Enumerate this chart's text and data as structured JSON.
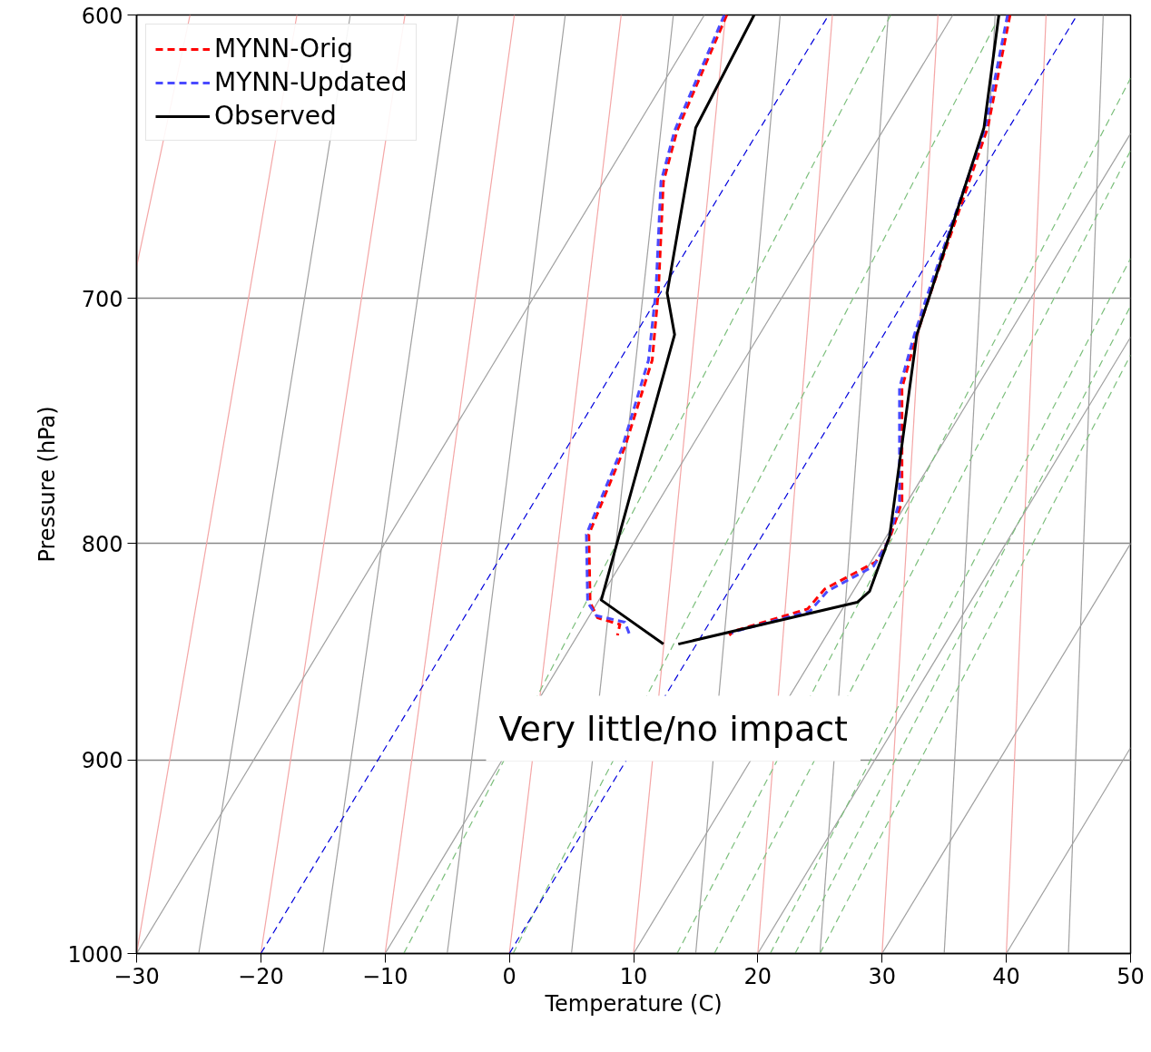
{
  "chart_data": {
    "type": "line",
    "xlabel": "Temperature (C)",
    "ylabel": "Pressure (hPa)",
    "log": "y",
    "xlim": [
      -30,
      50
    ],
    "ylim": [
      1000,
      600
    ],
    "xticks": [
      {
        "value": -30,
        "label": "−30"
      },
      {
        "value": -20,
        "label": "−20"
      },
      {
        "value": -10,
        "label": "−10"
      },
      0,
      10,
      20,
      30,
      40,
      50
    ],
    "yticks": [
      600,
      700,
      800,
      900,
      1000
    ],
    "grid": "y",
    "legend": "top left",
    "annotations": [
      "Very little/no impact"
    ],
    "series": [
      {
        "color": "#f4a6a6",
        "x": [
          -30,
          -25.7
        ],
        "values": [
          688,
          600
        ]
      },
      {
        "color": "#f4a6a6",
        "x": [
          -30,
          -17.1
        ],
        "values": [
          1000,
          600
        ]
      },
      {
        "color": "#f4a6a6",
        "x": [
          -20,
          -8.4
        ],
        "values": [
          1000,
          600
        ]
      },
      {
        "color": "#f4a6a6",
        "x": [
          -10,
          0.4
        ],
        "values": [
          1000,
          600
        ]
      },
      {
        "color": "#f4a6a6",
        "x": [
          0,
          9.0
        ],
        "values": [
          1000,
          600
        ]
      },
      {
        "color": "#f4a6a6",
        "x": [
          10,
          17.4
        ],
        "values": [
          1000,
          600
        ]
      },
      {
        "color": "#f4a6a6",
        "x": [
          20,
          26.0
        ],
        "values": [
          1000,
          600
        ]
      },
      {
        "color": "#f4a6a6",
        "x": [
          30,
          34.5
        ],
        "values": [
          1000,
          600
        ]
      },
      {
        "color": "#f4a6a6",
        "x": [
          40,
          43.2
        ],
        "values": [
          1000,
          600
        ]
      },
      {
        "color": "#a0a0a0",
        "x": [
          -25,
          -12.8
        ],
        "values": [
          1000,
          600
        ]
      },
      {
        "color": "#a0a0a0",
        "x": [
          -15,
          -4.1
        ],
        "values": [
          1000,
          600
        ]
      },
      {
        "color": "#a0a0a0",
        "x": [
          -5,
          4.5
        ],
        "values": [
          1000,
          600
        ]
      },
      {
        "color": "#a0a0a0",
        "x": [
          5,
          13.2
        ],
        "values": [
          1000,
          600
        ]
      },
      {
        "color": "#a0a0a0",
        "x": [
          15,
          21.8
        ],
        "values": [
          1000,
          600
        ]
      },
      {
        "color": "#a0a0a0",
        "x": [
          25,
          30.5
        ],
        "values": [
          1000,
          600
        ]
      },
      {
        "color": "#a0a0a0",
        "x": [
          35,
          39.1
        ],
        "values": [
          1000,
          600
        ]
      },
      {
        "color": "#a0a0a0",
        "x": [
          45,
          47.8
        ],
        "values": [
          1000,
          600
        ]
      },
      {
        "color": "#a0a0a0",
        "x": [
          -30,
          15.7
        ],
        "values": [
          1000,
          600
        ]
      },
      {
        "color": "#a0a0a0",
        "x": [
          -10,
          35.7
        ],
        "values": [
          1000,
          600
        ]
      },
      {
        "color": "#a0a0a0",
        "x": [
          10,
          50
        ],
        "values": [
          1000,
          640
        ]
      },
      {
        "color": "#a0a0a0",
        "x": [
          20,
          50
        ],
        "values": [
          1000,
          715
        ]
      },
      {
        "color": "#a0a0a0",
        "x": [
          30,
          50
        ],
        "values": [
          1000,
          800
        ]
      },
      {
        "color": "#a0a0a0",
        "x": [
          40,
          50
        ],
        "values": [
          1000,
          894
        ]
      },
      {
        "color": "#7cbf7c",
        "line_style": "dashed",
        "x": [
          -8.5,
          30.7
        ],
        "values": [
          1000,
          600
        ]
      },
      {
        "color": "#7cbf7c",
        "line_style": "dashed",
        "x": [
          0.3,
          39.5
        ],
        "values": [
          1000,
          600
        ]
      },
      {
        "color": "#7cbf7c",
        "line_style": "dashed",
        "x": [
          13.5,
          50
        ],
        "values": [
          1000,
          621
        ]
      },
      {
        "color": "#7cbf7c",
        "line_style": "dashed",
        "x": [
          16.5,
          50
        ],
        "values": [
          1000,
          646
        ]
      },
      {
        "color": "#7cbf7c",
        "line_style": "dashed",
        "x": [
          21,
          50
        ],
        "values": [
          1000,
          685
        ]
      },
      {
        "color": "#7cbf7c",
        "line_style": "dashed",
        "x": [
          23,
          50
        ],
        "values": [
          1000,
          703
        ]
      },
      {
        "color": "#7cbf7c",
        "line_style": "dashed",
        "x": [
          25,
          50
        ],
        "values": [
          1000,
          722
        ]
      },
      {
        "color": "#0000dd",
        "line_style": "dashed",
        "x": [
          -20,
          25.7
        ],
        "values": [
          1000,
          600
        ]
      },
      {
        "color": "#0000dd",
        "line_style": "dashed",
        "x": [
          0,
          45.7
        ],
        "values": [
          1000,
          600
        ]
      },
      {
        "name": "MYNN-Orig",
        "color": "#ff0000",
        "line_style": "dashed",
        "x": [
          40.3,
          38.5,
          33.9,
          32.8,
          31.6,
          31.6,
          30.6,
          29.5,
          25.4,
          24.0,
          18.1,
          17.7,
          null,
          17.5,
          13.5,
          12.4,
          12.0,
          11.5,
          9.3,
          6.4,
          6.5,
          7.1,
          8.9,
          8.7
        ],
        "values": [
          600,
          638,
          698,
          714,
          735,
          782,
          798,
          808,
          820,
          829,
          839,
          841,
          null,
          600,
          639,
          657,
          697,
          724,
          759,
          796,
          826,
          833,
          836,
          841
        ]
      },
      {
        "name": "MYNN-Updated",
        "color": "#4a4aff",
        "line_style": "dashed",
        "x": [
          40.1,
          38.3,
          33.7,
          32.6,
          31.4,
          31.4,
          30.4,
          29.3,
          25.6,
          24.2,
          18.3,
          17.9,
          null,
          17.3,
          13.3,
          12.2,
          11.8,
          11.2,
          9.1,
          6.2,
          6.3,
          7.0,
          9.3,
          9.7
        ],
        "values": [
          600,
          638,
          698,
          714,
          735,
          782,
          800,
          810,
          821,
          830,
          839,
          840,
          null,
          600,
          639,
          657,
          697,
          724,
          759,
          796,
          826,
          832,
          835,
          841
        ]
      },
      {
        "name": "Observed",
        "color": "#000000",
        "line_style": "solid",
        "x": [
          39.4,
          38.2,
          33.9,
          32.8,
          30.6,
          29.0,
          28.0,
          13.6,
          null,
          19.7,
          15.0,
          12.7,
          13.3,
          7.4,
          12.4
        ],
        "values": [
          600,
          638,
          698,
          714,
          797,
          821,
          826,
          845,
          null,
          600,
          638,
          698,
          714,
          825,
          845
        ]
      }
    ]
  }
}
